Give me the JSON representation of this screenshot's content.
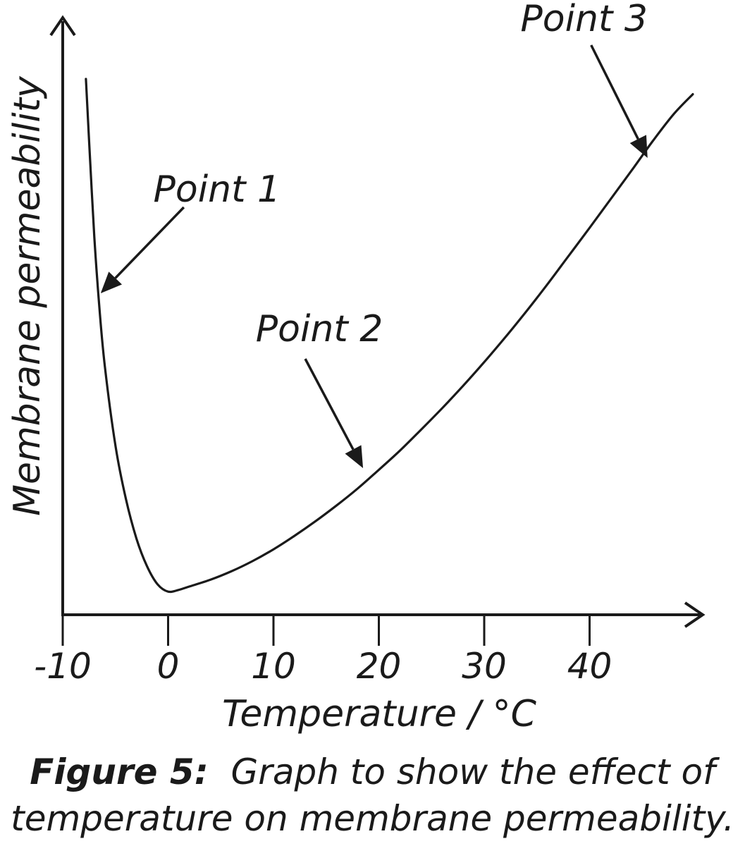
{
  "chart_data": {
    "type": "line",
    "xlabel": "Temperature / °C",
    "ylabel": "Membrane permeability",
    "xlim": [
      -10,
      50
    ],
    "x_ticks": [
      -10,
      0,
      10,
      20,
      30,
      40
    ],
    "y_ticks": [],
    "grid": false,
    "series": [
      {
        "x": [
          -7.8,
          -7.5,
          -7.0,
          -6.5,
          -6.0,
          -5.0,
          -4.0,
          -3.0,
          -2.0,
          -1.0,
          0.0,
          1.0,
          2.0,
          4.0,
          6.0,
          8.0,
          10.0,
          12.0,
          14.0,
          16.0,
          18.0,
          20.0,
          22.0,
          24.0,
          26.0,
          28.0,
          30.0,
          32.0,
          34.0,
          36.0,
          38.0,
          40.0,
          42.0,
          44.0,
          46.0,
          48.0,
          49.8
        ],
        "y": [
          95.0,
          84.0,
          67.0,
          54.0,
          44.0,
          30.0,
          20.5,
          13.5,
          8.6,
          5.4,
          4.1,
          4.4,
          5.0,
          6.2,
          7.7,
          9.5,
          11.6,
          14.0,
          16.6,
          19.4,
          22.4,
          25.7,
          29.1,
          32.8,
          36.6,
          40.6,
          44.8,
          49.2,
          53.8,
          58.6,
          63.6,
          68.6,
          73.7,
          78.8,
          84.0,
          88.8,
          92.3
        ]
      }
    ],
    "annotations": [
      {
        "text": "Point 1",
        "x": -6.4,
        "y": 57
      },
      {
        "text": "Point 2",
        "x": 18.5,
        "y": 26
      },
      {
        "text": "Point 3",
        "x": 45.5,
        "y": 81
      }
    ]
  },
  "caption": {
    "figure_number": "Figure 5:",
    "text_line1": "Graph to show the effect of",
    "text_line2": "temperature on membrane permeability."
  }
}
